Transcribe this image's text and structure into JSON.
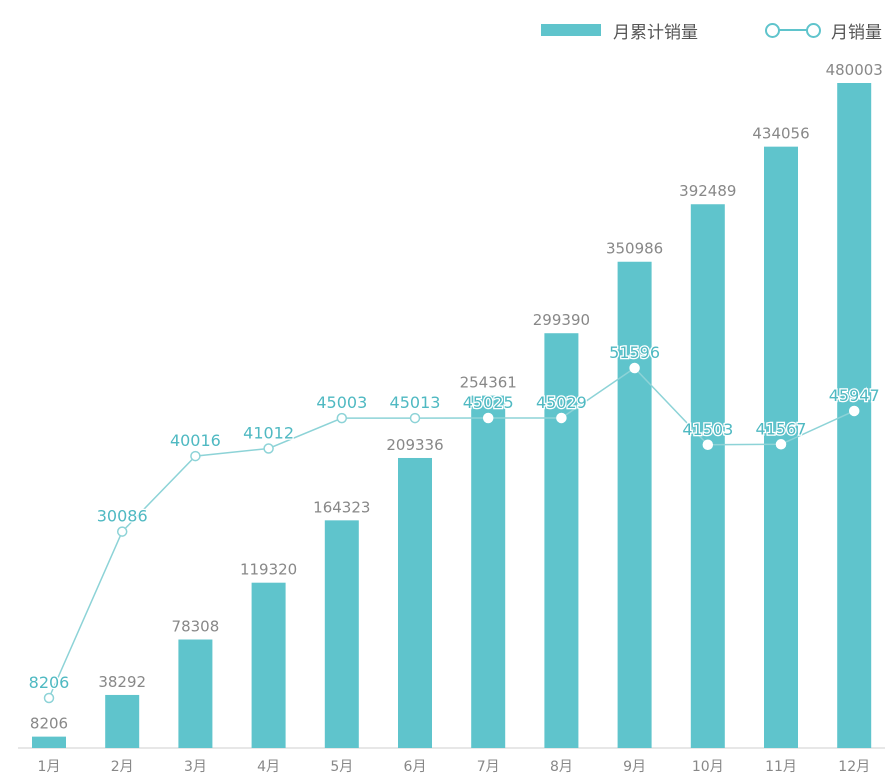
{
  "chart_data": {
    "type": "bar",
    "categories": [
      "1月",
      "2月",
      "3月",
      "4月",
      "5月",
      "6月",
      "7月",
      "8月",
      "9月",
      "10月",
      "11月",
      "12月"
    ],
    "series": [
      {
        "name": "月累计销量",
        "type": "bar",
        "values": [
          8206,
          38292,
          78308,
          119320,
          164323,
          209336,
          254361,
          299390,
          350986,
          392489,
          434056,
          480003
        ]
      },
      {
        "name": "月销量",
        "type": "line",
        "values": [
          8206,
          30086,
          40016,
          41012,
          45003,
          45013,
          45025,
          45029,
          51596,
          41503,
          41567,
          45947
        ]
      }
    ],
    "ylim_bar": [
      0,
      480003
    ],
    "ylim_line": [
      0,
      60000
    ],
    "colors": {
      "bar": "#5fc4cc",
      "line": "#8dd3d7",
      "bar_label": "#888888",
      "line_label": "#4fb9c2"
    },
    "legend": {
      "bar_label": "月累计销量",
      "line_label": "月销量"
    }
  }
}
